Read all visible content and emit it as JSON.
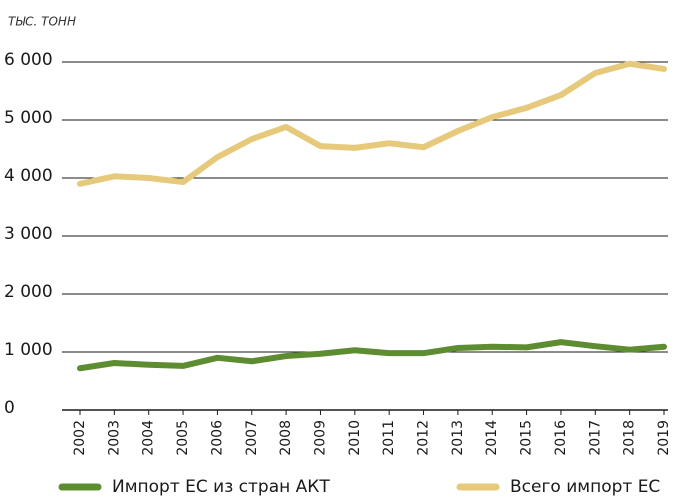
{
  "chart_data": {
    "type": "line",
    "y_label": "ТЫС. ТОНН",
    "categories": [
      "2002",
      "2003",
      "2004",
      "2005",
      "2006",
      "2007",
      "2008",
      "2009",
      "2010",
      "2011",
      "2012",
      "2013",
      "2014",
      "2015",
      "2016",
      "2017",
      "2018",
      "2019"
    ],
    "series": [
      {
        "name": "Импорт ЕС из стран АКТ",
        "color": "#5e8c31",
        "values": [
          720,
          810,
          780,
          760,
          900,
          840,
          930,
          970,
          1030,
          980,
          980,
          1070,
          1090,
          1080,
          1170,
          1100,
          1040,
          1090
        ]
      },
      {
        "name": "Всего импорт ЕС",
        "color": "#e6c97a",
        "values": [
          3900,
          4030,
          4000,
          3930,
          4360,
          4670,
          4880,
          4550,
          4520,
          4600,
          4530,
          4810,
          5050,
          5210,
          5430,
          5810,
          5970,
          5880
        ]
      }
    ],
    "ylim": [
      0,
      6000
    ],
    "yticks": [
      0,
      {
        "value": 1000,
        "label": "1 000"
      },
      {
        "value": 2000,
        "label": "2 000"
      },
      {
        "value": 3000,
        "label": "3 000"
      },
      {
        "value": 4000,
        "label": "4 000"
      },
      {
        "value": 5000,
        "label": "5 000"
      },
      {
        "value": 6000,
        "label": "6 000"
      }
    ],
    "grid": true,
    "legend": "bottom"
  }
}
